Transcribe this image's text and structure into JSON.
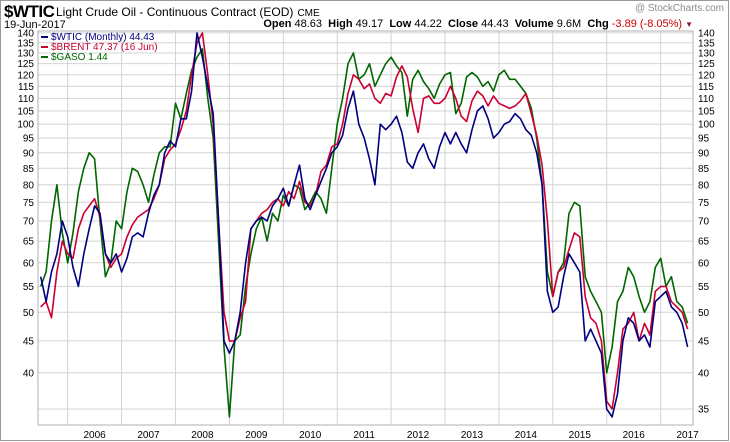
{
  "header": {
    "symbol": "$WTIC",
    "title": "Light Crude Oil - Continuous Contract (EOD)",
    "exchange": "CME",
    "date": "19-Jun-2017",
    "watermark": "@ StockCharts.com",
    "stats": {
      "open_label": "Open",
      "open": "48.63",
      "high_label": "High",
      "high": "49.17",
      "low_label": "Low",
      "low": "44.22",
      "close_label": "Close",
      "close": "44.43",
      "volume_label": "Volume",
      "volume": "9.6M",
      "chg_label": "Chg",
      "chg": "-3.89 (-8.05%)"
    }
  },
  "colors": {
    "wtic": "#000080",
    "brent": "#cc0033",
    "gaso": "#006600",
    "grid": "#d4d4d4"
  },
  "chart_data": {
    "type": "line",
    "y_scale": "log",
    "ylim": [
      33,
      141
    ],
    "xlim": [
      2005.45,
      2017.6
    ],
    "grid": true,
    "legend": "top-left",
    "y_ticks": [
      35,
      40,
      45,
      50,
      55,
      60,
      65,
      70,
      75,
      80,
      85,
      90,
      95,
      100,
      105,
      110,
      115,
      120,
      125,
      130,
      135,
      140
    ],
    "y_tick_labels_left": [
      "40",
      "45",
      "50",
      "55",
      "60",
      "65",
      "70",
      "75",
      "80",
      "85",
      "90",
      "95",
      "100",
      "105",
      "110",
      "115",
      "120",
      "125",
      "130",
      "135",
      "140"
    ],
    "y_tick_labels_right": [
      "35",
      "40",
      "45",
      "50",
      "55",
      "60",
      "65",
      "70",
      "75",
      "80",
      "85",
      "90",
      "95",
      "100",
      "105",
      "110",
      "115",
      "120",
      "125",
      "130",
      "135",
      "140"
    ],
    "x_ticks": [
      2006,
      2007,
      2008,
      2009,
      2010,
      2011,
      2012,
      2013,
      2014,
      2015,
      2016,
      2017
    ],
    "x_tick_labels": [
      "2006",
      "2007",
      "2008",
      "2009",
      "2010",
      "2011",
      "2012",
      "2013",
      "2014",
      "2015",
      "2016",
      "2017"
    ],
    "series": [
      {
        "name": "$GASO",
        "legend_label": "$GASO 1.44",
        "color": "#006600",
        "x": [
          2005.5,
          2005.6,
          2005.7,
          2005.8,
          2005.9,
          2006.0,
          2006.1,
          2006.2,
          2006.3,
          2006.4,
          2006.5,
          2006.6,
          2006.7,
          2006.8,
          2006.9,
          2007.0,
          2007.1,
          2007.2,
          2007.3,
          2007.4,
          2007.5,
          2007.6,
          2007.7,
          2007.8,
          2007.9,
          2008.0,
          2008.1,
          2008.2,
          2008.3,
          2008.4,
          2008.5,
          2008.6,
          2008.7,
          2008.8,
          2008.9,
          2009.0,
          2009.1,
          2009.2,
          2009.3,
          2009.4,
          2009.5,
          2009.6,
          2009.7,
          2009.8,
          2009.9,
          2010.0,
          2010.1,
          2010.2,
          2010.3,
          2010.4,
          2010.5,
          2010.6,
          2010.7,
          2010.8,
          2010.9,
          2011.0,
          2011.1,
          2011.2,
          2011.3,
          2011.4,
          2011.5,
          2011.6,
          2011.7,
          2011.8,
          2011.9,
          2012.0,
          2012.1,
          2012.2,
          2012.3,
          2012.4,
          2012.5,
          2012.6,
          2012.7,
          2012.8,
          2012.9,
          2013.0,
          2013.1,
          2013.2,
          2013.3,
          2013.4,
          2013.5,
          2013.6,
          2013.7,
          2013.8,
          2013.9,
          2014.0,
          2014.1,
          2014.2,
          2014.3,
          2014.4,
          2014.5,
          2014.6,
          2014.7,
          2014.8,
          2014.9,
          2015.0,
          2015.1,
          2015.2,
          2015.3,
          2015.4,
          2015.5,
          2015.6,
          2015.7,
          2015.8,
          2015.9,
          2016.0,
          2016.1,
          2016.2,
          2016.3,
          2016.4,
          2016.5,
          2016.6,
          2016.7,
          2016.8,
          2016.9,
          2017.0,
          2017.1,
          2017.2,
          2017.3,
          2017.4,
          2017.5
        ],
        "values": [
          55,
          58,
          70,
          80,
          67,
          60,
          67,
          78,
          85,
          90,
          88,
          70,
          57,
          60,
          70,
          68,
          78,
          85,
          84,
          80,
          75,
          83,
          90,
          92,
          92,
          108,
          102,
          112,
          122,
          128,
          132,
          110,
          95,
          65,
          44,
          34,
          45,
          46,
          55,
          62,
          68,
          71,
          65,
          72,
          70,
          77,
          74,
          80,
          79,
          73,
          75,
          78,
          76,
          72,
          85,
          100,
          110,
          125,
          130,
          118,
          120,
          125,
          115,
          120,
          125,
          128,
          124,
          121,
          103,
          118,
          122,
          117,
          114,
          110,
          116,
          120,
          121,
          104,
          108,
          119,
          121,
          119,
          115,
          117,
          113,
          120,
          122,
          118,
          118,
          115,
          112,
          106,
          95,
          80,
          58,
          53,
          58,
          60,
          72,
          75,
          74,
          57,
          54,
          52,
          50,
          40,
          44,
          52,
          54,
          59,
          57,
          53,
          50,
          52,
          59,
          61,
          55,
          57,
          52,
          51,
          48
        ]
      },
      {
        "name": "$BRENT",
        "legend_label": "$BRENT 47.37 (16 Jun)",
        "color": "#cc0033",
        "x": [
          2005.5,
          2005.6,
          2005.7,
          2005.8,
          2005.9,
          2006.0,
          2006.1,
          2006.2,
          2006.3,
          2006.4,
          2006.5,
          2006.6,
          2006.7,
          2006.8,
          2006.9,
          2007.0,
          2007.1,
          2007.2,
          2007.3,
          2007.4,
          2007.5,
          2007.6,
          2007.7,
          2007.8,
          2007.9,
          2008.0,
          2008.1,
          2008.2,
          2008.3,
          2008.4,
          2008.5,
          2008.6,
          2008.7,
          2008.8,
          2008.9,
          2009.0,
          2009.1,
          2009.2,
          2009.3,
          2009.4,
          2009.5,
          2009.6,
          2009.7,
          2009.8,
          2009.9,
          2010.0,
          2010.1,
          2010.2,
          2010.3,
          2010.4,
          2010.5,
          2010.6,
          2010.7,
          2010.8,
          2010.9,
          2011.0,
          2011.1,
          2011.2,
          2011.3,
          2011.4,
          2011.5,
          2011.6,
          2011.7,
          2011.8,
          2011.9,
          2012.0,
          2012.1,
          2012.2,
          2012.3,
          2012.4,
          2012.5,
          2012.6,
          2012.7,
          2012.8,
          2012.9,
          2013.0,
          2013.1,
          2013.2,
          2013.3,
          2013.4,
          2013.5,
          2013.6,
          2013.7,
          2013.8,
          2013.9,
          2014.0,
          2014.1,
          2014.2,
          2014.3,
          2014.4,
          2014.5,
          2014.6,
          2014.7,
          2014.8,
          2014.9,
          2015.0,
          2015.1,
          2015.2,
          2015.3,
          2015.4,
          2015.5,
          2015.6,
          2015.7,
          2015.8,
          2015.9,
          2016.0,
          2016.1,
          2016.2,
          2016.3,
          2016.4,
          2016.5,
          2016.6,
          2016.7,
          2016.8,
          2016.9,
          2017.0,
          2017.1,
          2017.2,
          2017.3,
          2017.4,
          2017.5
        ],
        "values": [
          51,
          52,
          49,
          58,
          65,
          62,
          61,
          68,
          72,
          74,
          76,
          71,
          62,
          59,
          61,
          62,
          66,
          69,
          71,
          72,
          73,
          76,
          80,
          88,
          91,
          93,
          98,
          105,
          120,
          135,
          140,
          120,
          100,
          70,
          50,
          45,
          45,
          49,
          52,
          68,
          70,
          72,
          73,
          75,
          76,
          74,
          78,
          76,
          81,
          75,
          74,
          77,
          84,
          86,
          92,
          93,
          100,
          112,
          120,
          118,
          114,
          116,
          110,
          108,
          112,
          111,
          119,
          124,
          119,
          106,
          97,
          110,
          111,
          108,
          108,
          110,
          115,
          110,
          103,
          101,
          109,
          113,
          111,
          107,
          111,
          108,
          107,
          106,
          107,
          109,
          112,
          104,
          96,
          86,
          70,
          53,
          58,
          59,
          63,
          67,
          66,
          53,
          49,
          48,
          45,
          36,
          35,
          40,
          47,
          48,
          50,
          45,
          48,
          46,
          54,
          55,
          55,
          52,
          51,
          50,
          47
        ]
      },
      {
        "name": "$WTIC",
        "legend_label": "$WTIC (Monthly) 44.43",
        "color": "#000080",
        "x": [
          2005.5,
          2005.6,
          2005.7,
          2005.8,
          2005.9,
          2006.0,
          2006.1,
          2006.2,
          2006.3,
          2006.4,
          2006.5,
          2006.6,
          2006.7,
          2006.8,
          2006.9,
          2007.0,
          2007.1,
          2007.2,
          2007.3,
          2007.4,
          2007.5,
          2007.6,
          2007.7,
          2007.8,
          2007.9,
          2008.0,
          2008.1,
          2008.2,
          2008.3,
          2008.4,
          2008.5,
          2008.6,
          2008.7,
          2008.8,
          2008.9,
          2009.0,
          2009.1,
          2009.2,
          2009.3,
          2009.4,
          2009.5,
          2009.6,
          2009.7,
          2009.8,
          2009.9,
          2010.0,
          2010.1,
          2010.2,
          2010.3,
          2010.4,
          2010.5,
          2010.6,
          2010.7,
          2010.8,
          2010.9,
          2011.0,
          2011.1,
          2011.2,
          2011.3,
          2011.4,
          2011.5,
          2011.6,
          2011.7,
          2011.8,
          2011.9,
          2012.0,
          2012.1,
          2012.2,
          2012.3,
          2012.4,
          2012.5,
          2012.6,
          2012.7,
          2012.8,
          2012.9,
          2013.0,
          2013.1,
          2013.2,
          2013.3,
          2013.4,
          2013.5,
          2013.6,
          2013.7,
          2013.8,
          2013.9,
          2014.0,
          2014.1,
          2014.2,
          2014.3,
          2014.4,
          2014.5,
          2014.6,
          2014.7,
          2014.8,
          2014.9,
          2015.0,
          2015.1,
          2015.2,
          2015.3,
          2015.4,
          2015.5,
          2015.6,
          2015.7,
          2015.8,
          2015.9,
          2016.0,
          2016.1,
          2016.2,
          2016.3,
          2016.4,
          2016.5,
          2016.6,
          2016.7,
          2016.8,
          2016.9,
          2017.0,
          2017.1,
          2017.2,
          2017.3,
          2017.4,
          2017.5
        ],
        "values": [
          57,
          52,
          58,
          62,
          70,
          66,
          59,
          55,
          62,
          68,
          74,
          72,
          62,
          60,
          62,
          58,
          61,
          66,
          67,
          66,
          72,
          77,
          80,
          90,
          94,
          92,
          102,
          102,
          113,
          140,
          128,
          115,
          104,
          70,
          45,
          43,
          45,
          50,
          60,
          68,
          70,
          71,
          70,
          74,
          76,
          79,
          74,
          80,
          86,
          76,
          73,
          77,
          81,
          85,
          90,
          92,
          96,
          106,
          113,
          100,
          95,
          88,
          80,
          100,
          98,
          100,
          103,
          97,
          87,
          85,
          90,
          93,
          88,
          85,
          92,
          97,
          93,
          97,
          93,
          90,
          98,
          105,
          107,
          102,
          95,
          97,
          100,
          101,
          104,
          102,
          98,
          96,
          90,
          80,
          54,
          50,
          51,
          57,
          62,
          60,
          58,
          45,
          47,
          45,
          43,
          35,
          34,
          37,
          45,
          49,
          48,
          45,
          46,
          44,
          52,
          53,
          54,
          51,
          50,
          48,
          44
        ]
      }
    ]
  }
}
